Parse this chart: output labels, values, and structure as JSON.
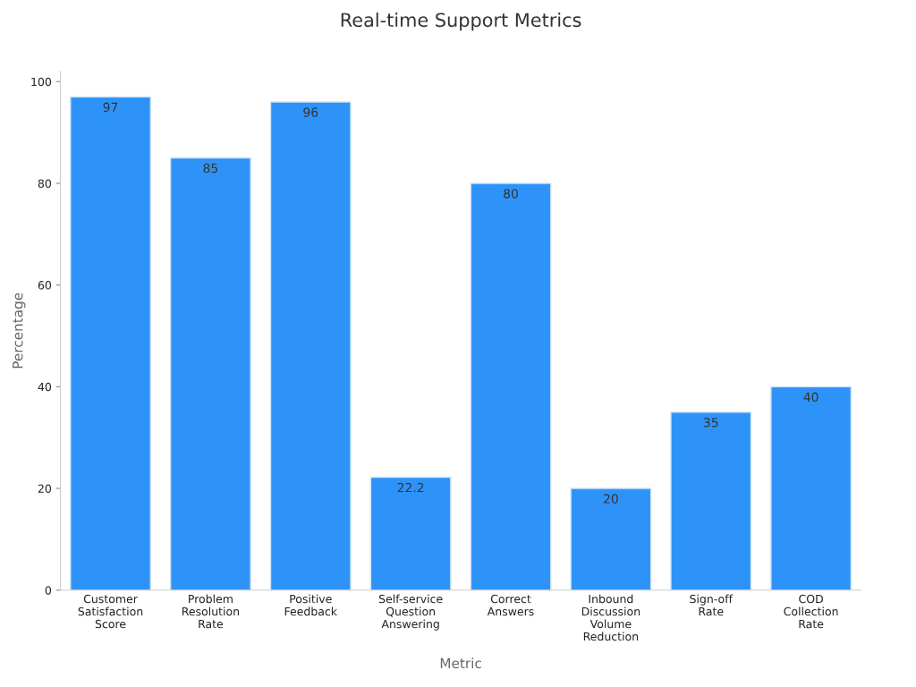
{
  "chart_data": {
    "type": "bar",
    "title": "Real-time Support Metrics",
    "xlabel": "Metric",
    "ylabel": "Percentage",
    "categories": [
      "Customer\nSatisfaction\nScore",
      "Problem\nResolution\nRate",
      "Positive\nFeedback",
      "Self-service\nQuestion\nAnswering",
      "Correct\nAnswers",
      "Inbound\nDiscussion\nVolume\nReduction",
      "Sign-off\nRate",
      "COD\nCollection\nRate"
    ],
    "values": [
      97,
      85,
      96,
      22.2,
      80,
      20,
      35,
      40
    ],
    "color": "#2e93f9",
    "ylim": [
      0,
      102
    ],
    "yticks": [
      0,
      20,
      40,
      60,
      80,
      100
    ],
    "grid": false,
    "legend": false,
    "data_labels": true
  }
}
